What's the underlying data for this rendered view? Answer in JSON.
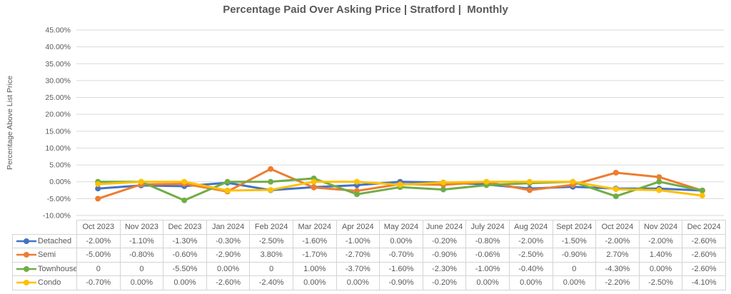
{
  "title": "Percentage Paid Over Asking Price | Stratford |  Monthly",
  "y_axis_title": "Percentage Above List Price",
  "colors": {
    "text": "#595959",
    "gridline": "#d9d9d9",
    "table_border": "#d4d4d4",
    "detached": "#4472C4",
    "semi": "#ED7D31",
    "townhouse": "#70AD47",
    "condo": "#FFC000"
  },
  "chart_data": {
    "type": "line",
    "title": "Percentage Paid Over Asking Price | Stratford |  Monthly",
    "xlabel": "",
    "ylabel": "Percentage Above List Price",
    "ylim": [
      -10,
      45
    ],
    "ytick_step": 5,
    "ytick_format": "percent_2dp",
    "grid": true,
    "legend_position": "table-left",
    "categories": [
      "Oct 2023",
      "Nov 2023",
      "Dec 2023",
      "Jan 2024",
      "Feb 2024",
      "Mar 2024",
      "Apr 2024",
      "May 2024",
      "June 2024",
      "July 2024",
      "Aug 2024",
      "Sept 2024",
      "Oct 2024",
      "Nov 2024",
      "Dec 2024"
    ],
    "series": [
      {
        "name": "Detached",
        "color": "#4472C4",
        "marker": "circle",
        "values": [
          -2.0,
          -1.1,
          -1.3,
          -0.3,
          -2.5,
          -1.6,
          -1.0,
          0.0,
          -0.2,
          -0.8,
          -2.0,
          -1.5,
          -2.0,
          -2.0,
          -2.6
        ]
      },
      {
        "name": "Semi",
        "color": "#ED7D31",
        "marker": "circle",
        "values": [
          -5.0,
          -0.8,
          -0.6,
          -2.9,
          3.8,
          -1.7,
          -2.7,
          -0.7,
          -0.9,
          -0.06,
          -2.5,
          -0.9,
          2.7,
          1.4,
          -2.6
        ]
      },
      {
        "name": "Townhouse",
        "color": "#70AD47",
        "marker": "circle",
        "values": [
          0,
          0,
          -5.5,
          0.0,
          0,
          1.0,
          -3.7,
          -1.6,
          -2.3,
          -1.0,
          -0.4,
          0,
          -4.3,
          0.0,
          -2.6
        ]
      },
      {
        "name": "Condo",
        "color": "#FFC000",
        "marker": "circle",
        "values": [
          -0.7,
          0.0,
          0.0,
          -2.6,
          -2.4,
          0.0,
          0.0,
          -0.9,
          -0.2,
          0.0,
          0.0,
          0.0,
          -2.2,
          -2.5,
          -4.1
        ]
      }
    ]
  },
  "table": {
    "header": [
      "Oct 2023",
      "Nov 2023",
      "Dec 2023",
      "Jan 2024",
      "Feb 2024",
      "Mar 2024",
      "Apr 2024",
      "May 2024",
      "June 2024",
      "July 2024",
      "Aug 2024",
      "Sept 2024",
      "Oct 2024",
      "Nov 2024",
      "Dec 2024"
    ],
    "rows": [
      {
        "name": "Detached",
        "cells": [
          "-2.00%",
          "-1.10%",
          "-1.30%",
          "-0.30%",
          "-2.50%",
          "-1.60%",
          "-1.00%",
          "0.00%",
          "-0.20%",
          "-0.80%",
          "-2.00%",
          "-1.50%",
          "-2.00%",
          "-2.00%",
          "-2.60%"
        ]
      },
      {
        "name": "Semi",
        "cells": [
          "-5.00%",
          "-0.80%",
          "-0.60%",
          "-2.90%",
          "3.80%",
          "-1.70%",
          "-2.70%",
          "-0.70%",
          "-0.90%",
          "-0.06%",
          "-2.50%",
          "-0.90%",
          "2.70%",
          "1.40%",
          "-2.60%"
        ]
      },
      {
        "name": "Townhouse",
        "cells": [
          "0",
          "0",
          "-5.50%",
          "0.00%",
          "0",
          "1.00%",
          "-3.70%",
          "-1.60%",
          "-2.30%",
          "-1.00%",
          "-0.40%",
          "0",
          "-4.30%",
          "0.00%",
          "-2.60%"
        ]
      },
      {
        "name": "Condo",
        "cells": [
          "-0.70%",
          "0.00%",
          "0.00%",
          "-2.60%",
          "-2.40%",
          "0.00%",
          "0.00%",
          "-0.90%",
          "-0.20%",
          "0.00%",
          "0.00%",
          "0.00%",
          "-2.20%",
          "-2.50%",
          "-4.10%"
        ]
      }
    ]
  }
}
